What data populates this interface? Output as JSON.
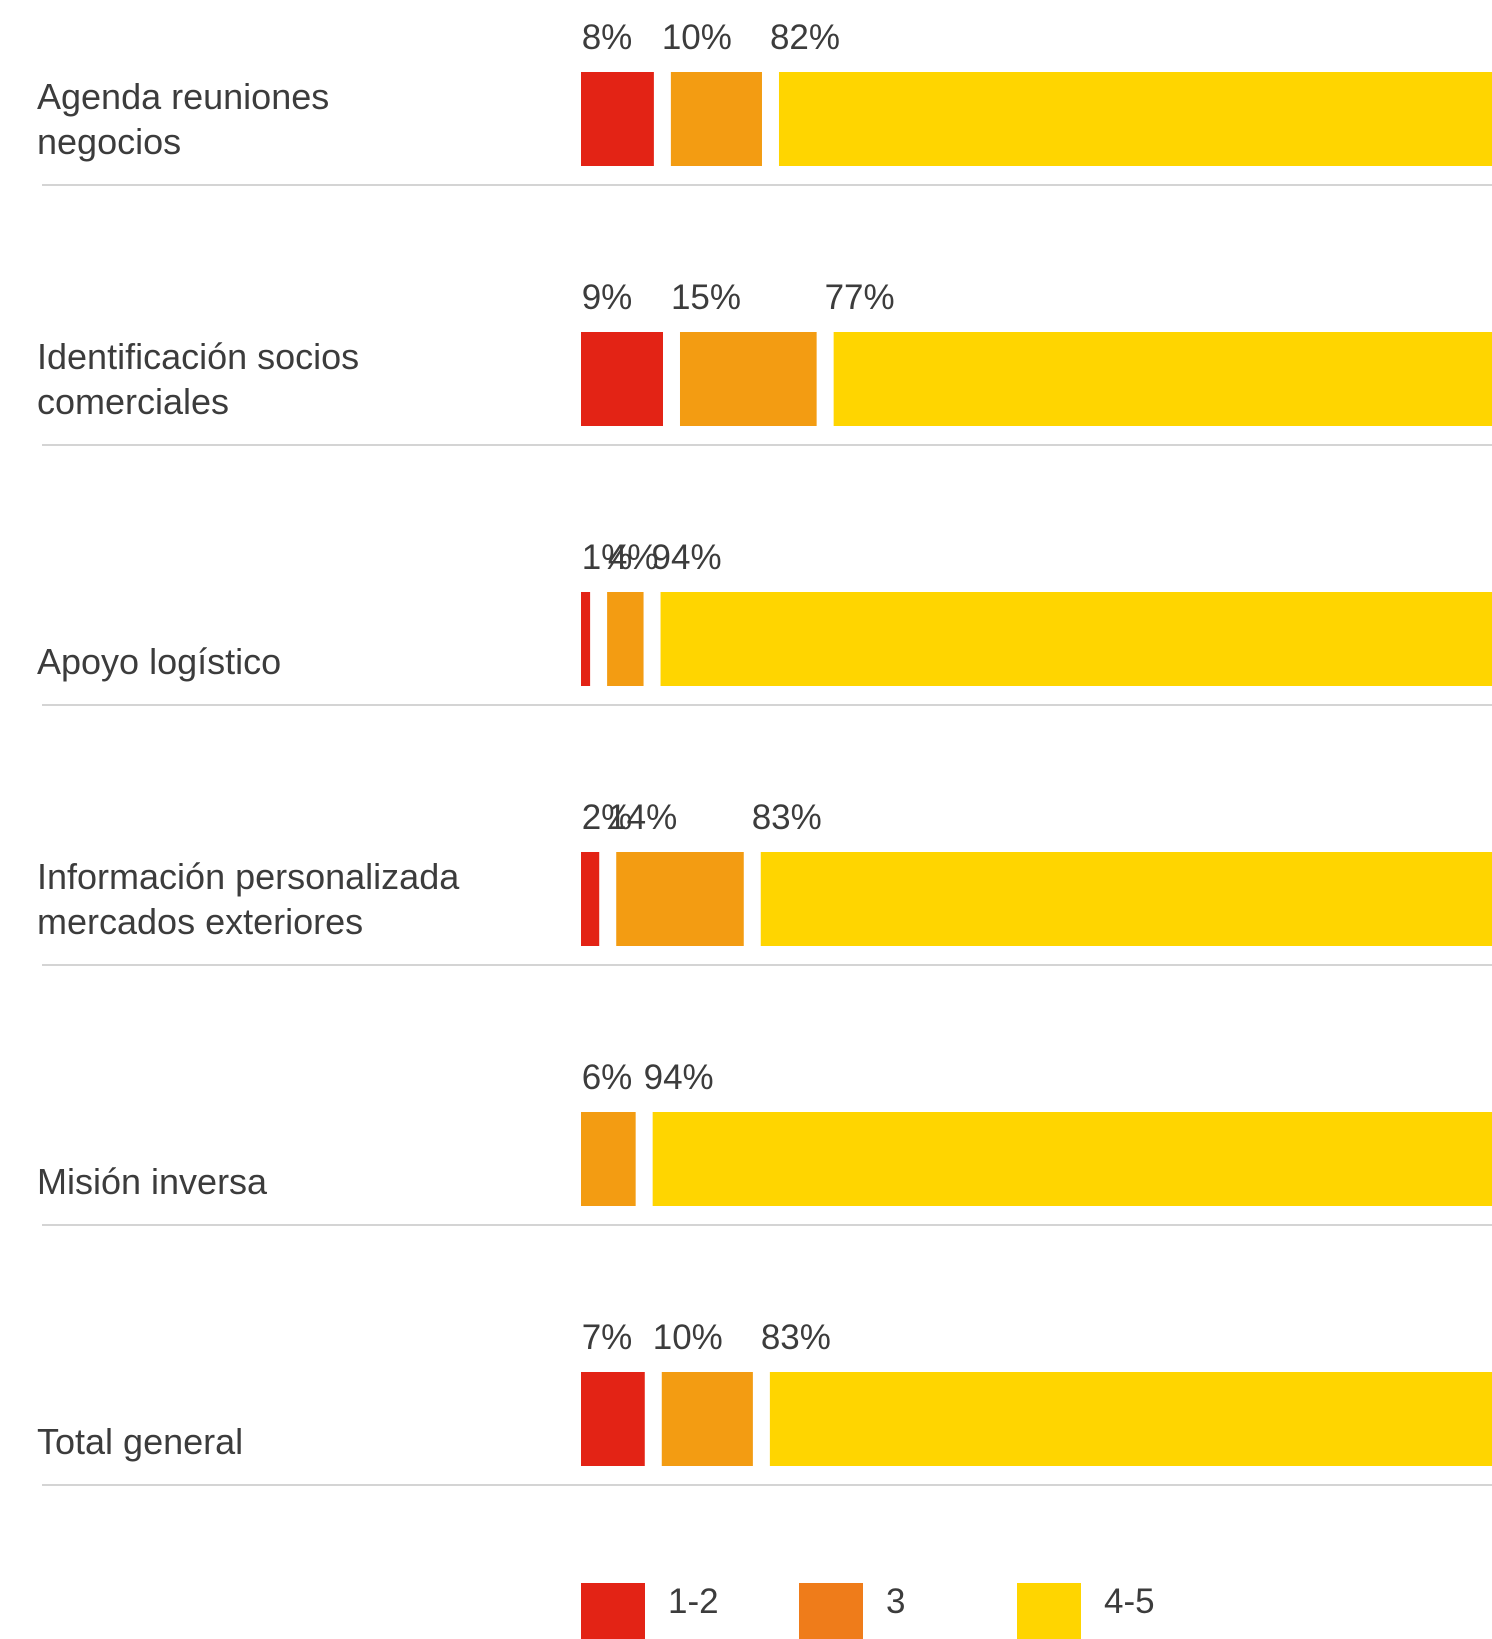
{
  "chart_data": {
    "type": "bar",
    "orientation": "horizontal",
    "stacked": true,
    "categories": [
      [
        "Agenda reuniones",
        "negocios"
      ],
      [
        "Identificación socios",
        "comerciales"
      ],
      [
        "Apoyo logístico"
      ],
      [
        "Información personalizada",
        "mercados exteriores"
      ],
      [
        "Misión inversa"
      ],
      [
        "Total general"
      ]
    ],
    "series": [
      {
        "name": "1-2",
        "color": "#e32315",
        "values": [
          8,
          9,
          1,
          2,
          0,
          7
        ],
        "labels": [
          "8%",
          "9%",
          "1%",
          "2%",
          "",
          "7%"
        ]
      },
      {
        "name": "3",
        "color": "#f39c12",
        "values": [
          10,
          15,
          4,
          14,
          6,
          10
        ],
        "labels": [
          "10%",
          "15%",
          "4%",
          "14%",
          "6%",
          "10%"
        ]
      },
      {
        "name": "4-5",
        "color": "#ffd500",
        "values": [
          82,
          77,
          94,
          83,
          94,
          83
        ],
        "labels": [
          "82%",
          "77%",
          "94%",
          "83%",
          "94%",
          "83%"
        ]
      }
    ],
    "legend": {
      "position": "bottom",
      "items": [
        {
          "label": "1-2",
          "color": "#e32315"
        },
        {
          "label": "3",
          "color": "#ef7c1a"
        },
        {
          "label": "4-5",
          "color": "#ffd500"
        }
      ]
    },
    "xlim": [
      0,
      100
    ],
    "grid": false,
    "separator_lines": true
  }
}
